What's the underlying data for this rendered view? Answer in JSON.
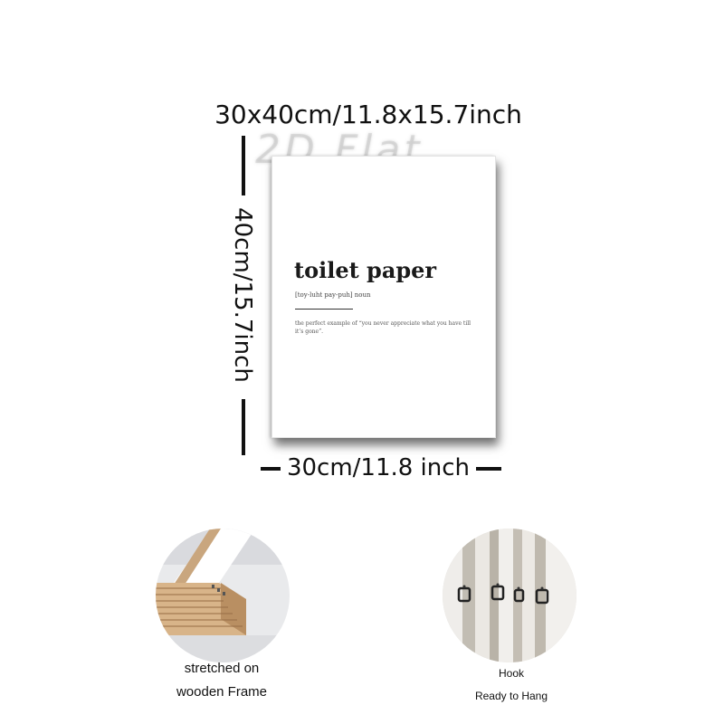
{
  "dimensions": {
    "top_label": "30x40cm/11.8x15.7inch",
    "left_label": "40cm/15.7inch",
    "bottom_label": "30cm/11.8 inch"
  },
  "watermark": "2D Flat",
  "print": {
    "title": "toilet paper",
    "phonetic": "[toy-luht pay-puh] noun",
    "definition": "the perfect example of “you never appreciate what you have till it’s gone”."
  },
  "features": [
    {
      "caption_line1": "stretched on",
      "caption_line2": "wooden Frame",
      "icon": "wooden-frame-corner"
    },
    {
      "caption_line1": "Hook",
      "caption_line2": "Ready to Hang",
      "icon": "hanging-hooks"
    }
  ]
}
